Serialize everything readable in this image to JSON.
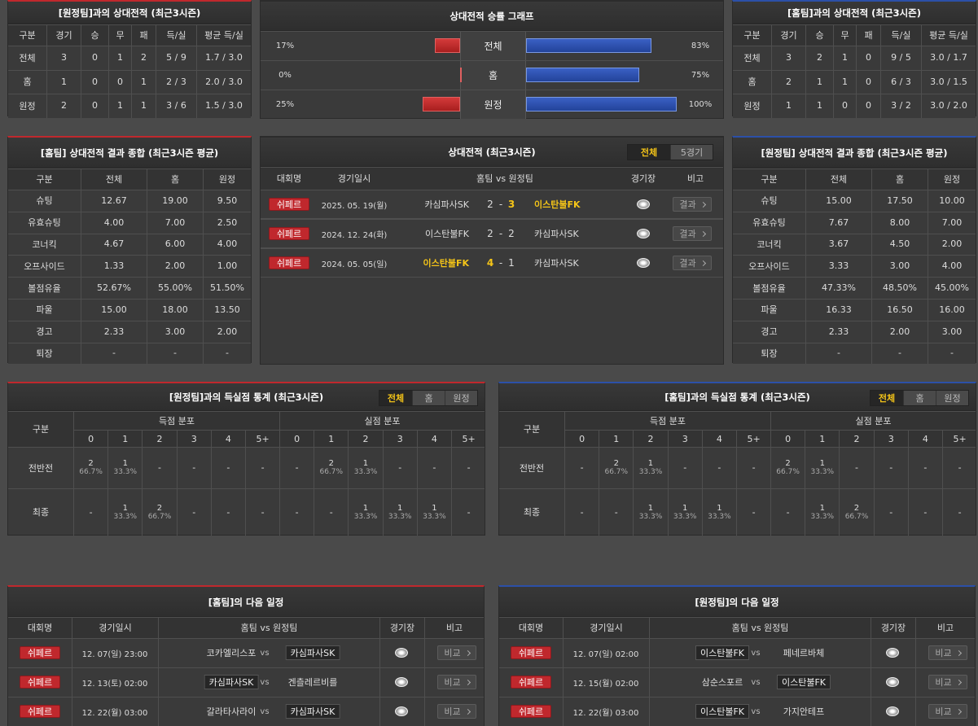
{
  "h2h_vs_away": {
    "title": "[원정팀]과의 상대전적 (최근3시즌)",
    "columns": [
      "구분",
      "경기",
      "승",
      "무",
      "패",
      "득/실",
      "평균 득/실"
    ],
    "rows": [
      [
        "전체",
        "3",
        "0",
        "1",
        "2",
        "5 / 9",
        "1.7 / 3.0"
      ],
      [
        "홈",
        "1",
        "0",
        "0",
        "1",
        "2 / 3",
        "2.0 / 3.0"
      ],
      [
        "원정",
        "2",
        "0",
        "1",
        "1",
        "3 / 6",
        "1.5 / 3.0"
      ]
    ]
  },
  "win_rate_graph": {
    "title": "상대전적 승률 그래프",
    "rows": [
      {
        "label": "전체",
        "home": 17,
        "home_label": "17%",
        "away": 83,
        "away_label": "83%"
      },
      {
        "label": "홈",
        "home": 0,
        "home_label": "0%",
        "away": 75,
        "away_label": "75%"
      },
      {
        "label": "원정",
        "home": 25,
        "home_label": "25%",
        "away": 100,
        "away_label": "100%"
      }
    ]
  },
  "h2h_vs_home": {
    "title": "[홈팀]과의 상대전적 (최근3시즌)",
    "columns": [
      "구분",
      "경기",
      "승",
      "무",
      "패",
      "득/실",
      "평균 득/실"
    ],
    "rows": [
      [
        "전체",
        "3",
        "2",
        "1",
        "0",
        "9 / 5",
        "3.0 / 1.7"
      ],
      [
        "홈",
        "2",
        "1",
        "1",
        "0",
        "6 / 3",
        "3.0 / 1.5"
      ],
      [
        "원정",
        "1",
        "1",
        "0",
        "0",
        "3 / 2",
        "3.0 / 2.0"
      ]
    ]
  },
  "home_summary": {
    "title": "[홈팀] 상대전적 결과 종합 (최근3시즌 평균)",
    "columns": [
      "구분",
      "전체",
      "홈",
      "원정"
    ],
    "rows": [
      [
        "슈팅",
        "12.67",
        "19.00",
        "9.50"
      ],
      [
        "유효슈팅",
        "4.00",
        "7.00",
        "2.50"
      ],
      [
        "코너킥",
        "4.67",
        "6.00",
        "4.00"
      ],
      [
        "오프사이드",
        "1.33",
        "2.00",
        "1.00"
      ],
      [
        "볼점유율",
        "52.67%",
        "55.00%",
        "51.50%"
      ],
      [
        "파울",
        "15.00",
        "18.00",
        "13.50"
      ],
      [
        "경고",
        "2.33",
        "3.00",
        "2.00"
      ],
      [
        "퇴장",
        "-",
        "-",
        "-"
      ]
    ]
  },
  "h2h_recent": {
    "title": "상대전적 (최근3시즌)",
    "tabs": [
      "전체",
      "5경기"
    ],
    "active_tab": 0,
    "columns": [
      "대회명",
      "경기일시",
      "홈팀 vs 원정팀",
      "경기장",
      "비고"
    ],
    "score_separator": "-",
    "rows": [
      {
        "league": "쉬페르",
        "date": "2025. 05. 19(월)",
        "home": "카심파사SK",
        "home_score": "2",
        "away_score": "3",
        "away": "이스탄불FK",
        "highlight": "away",
        "note": "결과"
      },
      {
        "league": "쉬페르",
        "date": "2024. 12. 24(화)",
        "home": "이스탄불FK",
        "home_score": "2",
        "away_score": "2",
        "away": "카심파사SK",
        "highlight": "none",
        "note": "결과"
      },
      {
        "league": "쉬페르",
        "date": "2024. 05. 05(일)",
        "home": "이스탄불FK",
        "home_score": "4",
        "away_score": "1",
        "away": "카심파사SK",
        "highlight": "home",
        "note": "결과"
      }
    ]
  },
  "away_summary": {
    "title": "[원정팀] 상대전적 결과 종합 (최근3시즌 평균)",
    "columns": [
      "구분",
      "전체",
      "홈",
      "원정"
    ],
    "rows": [
      [
        "슈팅",
        "15.00",
        "17.50",
        "10.00"
      ],
      [
        "유효슈팅",
        "7.67",
        "8.00",
        "7.00"
      ],
      [
        "코너킥",
        "3.67",
        "4.50",
        "2.00"
      ],
      [
        "오프사이드",
        "3.33",
        "3.00",
        "4.00"
      ],
      [
        "볼점유율",
        "47.33%",
        "48.50%",
        "45.00%"
      ],
      [
        "파울",
        "16.33",
        "16.50",
        "16.00"
      ],
      [
        "경고",
        "2.33",
        "2.00",
        "3.00"
      ],
      [
        "퇴장",
        "-",
        "-",
        "-"
      ]
    ]
  },
  "goals_vs_away": {
    "title": "[원정팀]과의 득실점 통계 (최근3시즌)",
    "tabs": [
      "전체",
      "홈",
      "원정"
    ],
    "active_tab": 0,
    "group_label": "구분",
    "scored_label": "득점 분포",
    "conceded_label": "실점 분포",
    "goal_columns": [
      "0",
      "1",
      "2",
      "3",
      "4",
      "5+"
    ],
    "rows": [
      {
        "label": "전반전",
        "scored": [
          [
            "2",
            "66.7%"
          ],
          [
            "1",
            "33.3%"
          ],
          "-",
          "-",
          "-",
          "-"
        ],
        "conceded": [
          "-",
          [
            "2",
            "66.7%"
          ],
          [
            "1",
            "33.3%"
          ],
          "-",
          "-",
          "-"
        ]
      },
      {
        "label": "최종",
        "scored": [
          "-",
          [
            "1",
            "33.3%"
          ],
          [
            "2",
            "66.7%"
          ],
          "-",
          "-",
          "-"
        ],
        "conceded": [
          "-",
          "-",
          [
            "1",
            "33.3%"
          ],
          [
            "1",
            "33.3%"
          ],
          [
            "1",
            "33.3%"
          ],
          "-"
        ]
      }
    ]
  },
  "goals_vs_home": {
    "title": "[홈팀]과의 득실점 통계 (최근3시즌)",
    "tabs": [
      "전체",
      "홈",
      "원정"
    ],
    "active_tab": 0,
    "group_label": "구분",
    "scored_label": "득점 분포",
    "conceded_label": "실점 분포",
    "goal_columns": [
      "0",
      "1",
      "2",
      "3",
      "4",
      "5+"
    ],
    "rows": [
      {
        "label": "전반전",
        "scored": [
          "-",
          [
            "2",
            "66.7%"
          ],
          [
            "1",
            "33.3%"
          ],
          "-",
          "-",
          "-"
        ],
        "conceded": [
          [
            "2",
            "66.7%"
          ],
          [
            "1",
            "33.3%"
          ],
          "-",
          "-",
          "-",
          "-"
        ]
      },
      {
        "label": "최종",
        "scored": [
          "-",
          "-",
          [
            "1",
            "33.3%"
          ],
          [
            "1",
            "33.3%"
          ],
          [
            "1",
            "33.3%"
          ],
          "-"
        ],
        "conceded": [
          "-",
          [
            "1",
            "33.3%"
          ],
          [
            "2",
            "66.7%"
          ],
          "-",
          "-",
          "-"
        ]
      }
    ]
  },
  "home_next": {
    "title": "[홈팀]의 다음 일정",
    "columns": [
      "대회명",
      "경기일시",
      "홈팀 vs 원정팀",
      "경기장",
      "비고"
    ],
    "vs": "vs",
    "rows": [
      {
        "league": "쉬페르",
        "date": "12. 07(일) 23:00",
        "home": "코카엘리스포",
        "away": "카심파사SK",
        "boxed": "away",
        "note": "비교"
      },
      {
        "league": "쉬페르",
        "date": "12. 13(토) 02:00",
        "home": "카심파사SK",
        "away": "겐츨레르비를",
        "boxed": "home",
        "note": "비교"
      },
      {
        "league": "쉬페르",
        "date": "12. 22(월) 03:00",
        "home": "갈라타사라이",
        "away": "카심파사SK",
        "boxed": "away",
        "note": "비교"
      }
    ]
  },
  "away_next": {
    "title": "[원정팀]의 다음 일정",
    "columns": [
      "대회명",
      "경기일시",
      "홈팀 vs 원정팀",
      "경기장",
      "비고"
    ],
    "vs": "vs",
    "rows": [
      {
        "league": "쉬페르",
        "date": "12. 07(일) 02:00",
        "home": "이스탄불FK",
        "away": "페네르바체",
        "boxed": "home",
        "note": "비교"
      },
      {
        "league": "쉬페르",
        "date": "12. 15(월) 02:00",
        "home": "삼순스포르",
        "away": "이스탄불FK",
        "boxed": "away",
        "note": "비교"
      },
      {
        "league": "쉬페르",
        "date": "12. 22(월) 03:00",
        "home": "이스탄불FK",
        "away": "가지안테프",
        "boxed": "home",
        "note": "비교"
      }
    ]
  }
}
